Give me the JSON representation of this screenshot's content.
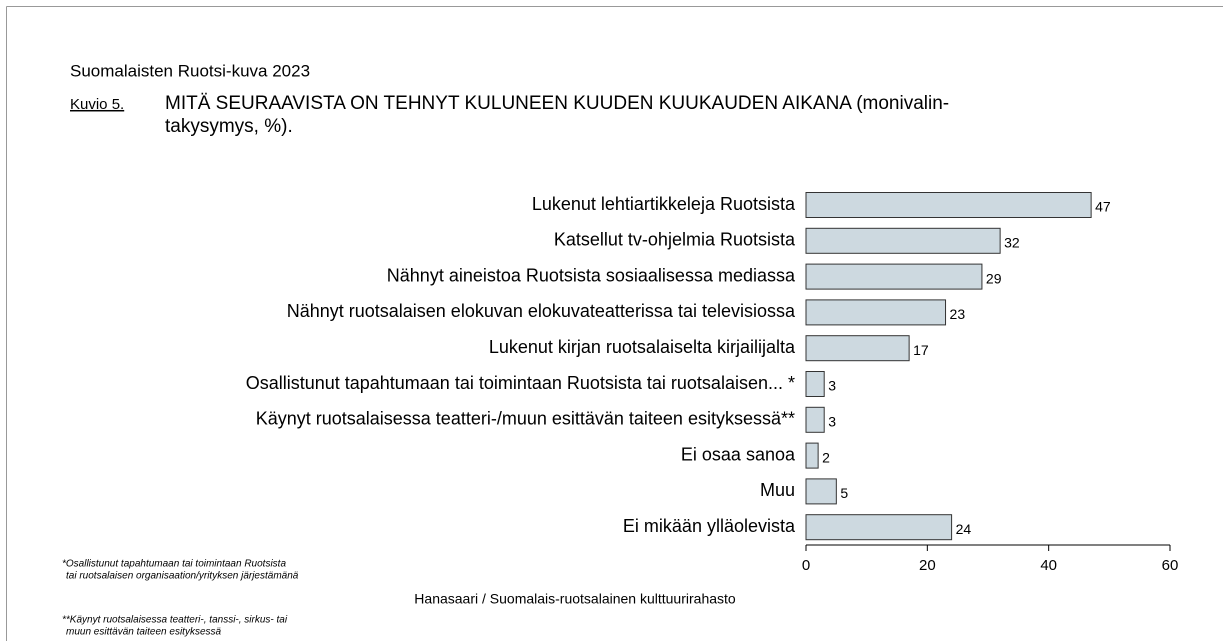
{
  "chart_data": {
    "type": "bar",
    "subtitle": "Suomalaisten Ruotsi-kuva 2023",
    "figure_label": "Kuvio 5.",
    "title_lines": [
      "MITÄ SEURAAVISTA ON TEHNYT KULUNEEN KUUDEN KUUKAUDEN AIKANA (monivalin-",
      "takysymys, %)."
    ],
    "categories": [
      "Lukenut lehtiartikkeleja Ruotsista",
      "Katsellut tv-ohjelmia Ruotsista",
      "Nähnyt aineistoa Ruotsista sosiaalisessa mediassa",
      "Nähnyt ruotsalaisen elokuvan elokuvateatterissa tai televisiossa",
      "Lukenut kirjan ruotsalaiselta kirjailijalta",
      "Osallistunut tapahtumaan tai toimintaan Ruotsista tai ruotsalaisen... *",
      "Käynyt ruotsalaisessa teatteri-/muun esittävän taiteen esityksessä**",
      "Ei osaa sanoa",
      "Muu",
      "Ei mikään ylläolevista"
    ],
    "values": [
      47,
      32,
      29,
      23,
      17,
      3,
      3,
      2,
      5,
      24
    ],
    "color": "#cdd9e0",
    "xlim": [
      0,
      60
    ],
    "xticks": [
      0,
      20,
      40,
      60
    ],
    "footnotes": [
      [
        "*Osallistunut tapahtumaan tai toimintaan Ruotsista",
        "tai ruotsalaisen organisaation/yrityksen järjestämänä"
      ],
      [
        "**Käynyt ruotsalaisessa teatteri-, tanssi-, sirkus- tai",
        "muun esittävän taiteen esityksessä"
      ]
    ],
    "source": "Hanasaari / Suomalais-ruotsalainen kulttuurirahasto"
  }
}
